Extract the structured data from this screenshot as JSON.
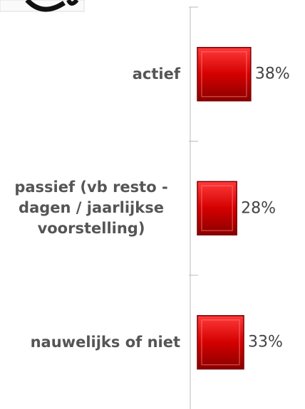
{
  "chart_data": {
    "type": "bar",
    "orientation": "horizontal",
    "categories": [
      "actief",
      "passief (vb resto -dagen / jaarlijkse voorstelling)",
      "nauwelijks of niet"
    ],
    "values": [
      38,
      28,
      33
    ],
    "value_labels": [
      "38%",
      "28%",
      "33%"
    ],
    "color": "#d40000"
  }
}
